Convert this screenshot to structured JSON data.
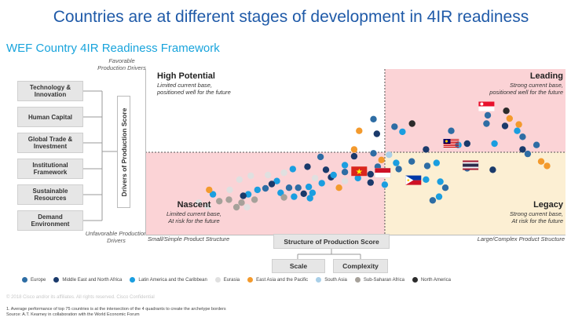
{
  "title": "Countries are at different stages of development in 4IR readiness",
  "subtitle": "WEF Country 4IR Readiness Framework",
  "y_axis": {
    "top_label": "Favorable Production Drivers",
    "bottom_label": "Unfavorable Production Drivers",
    "title": "Drivers of Production Score",
    "drivers": [
      "Technology & Innovation",
      "Human Capital",
      "Global Trade & Investment",
      "Institutional Framework",
      "Sustainable Resources",
      "Demand Environment"
    ]
  },
  "x_axis": {
    "left_label": "Small/Simple Product Structure",
    "right_label": "Large/Complex Product Structure",
    "title": "Structure of Production Score",
    "components": [
      "Scale",
      "Complexity"
    ]
  },
  "quadrants": {
    "high_potential": {
      "title": "High Potential",
      "desc1": "Limited current base,",
      "desc2": "positioned well for the future"
    },
    "leading": {
      "title": "Leading",
      "desc1": "Strong current base,",
      "desc2": "positioned well for the future"
    },
    "nascent": {
      "title": "Nascent",
      "desc1": "Limited current base,",
      "desc2": "At risk for the future"
    },
    "legacy": {
      "title": "Legacy",
      "desc1": "Strong current base,",
      "desc2": "At risk for the future"
    }
  },
  "colors": {
    "title": "#1f5aa8",
    "subtitle": "#19a4dc",
    "quadrant_pink": "#fbd3d6",
    "quadrant_beige": "#fcefd3"
  },
  "copyright": "© 2018  Cisco and/or its affiliates. All rights reserved.   Cisco Confidential",
  "footnote_line1": "1. Average performance of top 75 countries is at the intersection of the 4 quadrants to create the archetype borders",
  "footnote_line2": "Source: A.T. Kearney in collaboration with the World Economic Forum",
  "chart_data": {
    "type": "scatter",
    "title": "WEF Country 4IR Readiness Framework",
    "xlabel": "Structure of Production Score",
    "ylabel": "Drivers of Production Score",
    "xlim": [
      0,
      100
    ],
    "ylim": [
      0,
      100
    ],
    "grid": false,
    "legend_position": "bottom",
    "region_colors": {
      "Europe": "#2e6da4",
      "Middle East and North Africa": "#1a3a6b",
      "Latin America and the Caribbean": "#1a9ee0",
      "Eurasia": "#e0e0e0",
      "East Asia and the Pacific": "#f39a2d",
      "South Asia": "#a9cfe8",
      "Sub-Saharan Africa": "#a6a19a",
      "North America": "#2b2b2b"
    },
    "legend": [
      "Europe",
      "Middle East and North Africa",
      "Latin America and the Caribbean",
      "Eurasia",
      "East Asia and the Pacific",
      "South Asia",
      "Sub-Saharan Africa",
      "North America"
    ],
    "points": [
      {
        "x": 85.9,
        "y": 74.9,
        "r": "North America"
      },
      {
        "x": 81.5,
        "y": 72.2,
        "r": "Europe"
      },
      {
        "x": 81.2,
        "y": 67.2,
        "r": "Europe"
      },
      {
        "x": 86.7,
        "y": 70.3,
        "r": "East Asia and the Pacific"
      },
      {
        "x": 88.9,
        "y": 66.7,
        "r": "East Asia and the Pacific"
      },
      {
        "x": 85.6,
        "y": 65.8,
        "r": "Middle East and North Africa"
      },
      {
        "x": 88.5,
        "y": 62.9,
        "r": "Latin America and the Caribbean"
      },
      {
        "x": 89.8,
        "y": 59.3,
        "r": "Europe"
      },
      {
        "x": 93.1,
        "y": 54.4,
        "r": "Europe"
      },
      {
        "x": 89.8,
        "y": 51.7,
        "r": "Middle East and North Africa"
      },
      {
        "x": 91.0,
        "y": 49.0,
        "r": "Europe"
      },
      {
        "x": 94.2,
        "y": 44.5,
        "r": "East Asia and the Pacific"
      },
      {
        "x": 95.6,
        "y": 41.8,
        "r": "East Asia and the Pacific"
      },
      {
        "x": 82.7,
        "y": 39.5,
        "r": "Middle East and North Africa"
      },
      {
        "x": 83.1,
        "y": 55.2,
        "r": "Latin America and the Caribbean"
      },
      {
        "x": 72.8,
        "y": 62.9,
        "r": "Europe"
      },
      {
        "x": 74.5,
        "y": 54.4,
        "r": "Latin America and the Caribbean"
      },
      {
        "x": 76.6,
        "y": 55.2,
        "r": "Middle East and North Africa"
      },
      {
        "x": 76.6,
        "y": 40.4,
        "r": "Europe"
      },
      {
        "x": 66.8,
        "y": 51.7,
        "r": "Middle East and North Africa"
      },
      {
        "x": 67.1,
        "y": 41.8,
        "r": "Europe"
      },
      {
        "x": 69.3,
        "y": 43.6,
        "r": "Latin America and the Caribbean"
      },
      {
        "x": 66.8,
        "y": 33.6,
        "r": "Latin America and the Caribbean"
      },
      {
        "x": 70.2,
        "y": 32.3,
        "r": "Latin America and the Caribbean"
      },
      {
        "x": 71.4,
        "y": 28.7,
        "r": "Europe"
      },
      {
        "x": 69.9,
        "y": 23.3,
        "r": "Latin America and the Caribbean"
      },
      {
        "x": 68.4,
        "y": 21.1,
        "r": "Europe"
      },
      {
        "x": 63.4,
        "y": 44.5,
        "r": "Europe"
      },
      {
        "x": 56.2,
        "y": 45.4,
        "r": "East Asia and the Pacific"
      },
      {
        "x": 55.3,
        "y": 41.3,
        "r": "Europe"
      },
      {
        "x": 54.3,
        "y": 49.4,
        "r": "Europe"
      },
      {
        "x": 53.6,
        "y": 36.8,
        "r": "Middle East and North Africa"
      },
      {
        "x": 49.7,
        "y": 51.7,
        "r": "East Asia and the Pacific"
      },
      {
        "x": 49.7,
        "y": 47.6,
        "r": "Middle East and North Africa"
      },
      {
        "x": 47.5,
        "y": 38.1,
        "r": "Europe"
      },
      {
        "x": 47.5,
        "y": 32.7,
        "r": "Eurasia"
      },
      {
        "x": 44.2,
        "y": 35.0,
        "r": "Middle East and North Africa"
      },
      {
        "x": 40.4,
        "y": 34.5,
        "r": "Eurasia"
      },
      {
        "x": 42.0,
        "y": 31.4,
        "r": "Latin America and the Caribbean"
      },
      {
        "x": 38.9,
        "y": 29.2,
        "r": "Latin America and the Caribbean"
      },
      {
        "x": 36.4,
        "y": 28.7,
        "r": "Europe"
      },
      {
        "x": 37.7,
        "y": 25.1,
        "r": "Middle East and North Africa"
      },
      {
        "x": 39.2,
        "y": 22.4,
        "r": "Latin America and the Caribbean"
      },
      {
        "x": 39.8,
        "y": 25.6,
        "r": "Latin America and the Caribbean"
      },
      {
        "x": 35.4,
        "y": 23.3,
        "r": "Latin America and the Caribbean"
      },
      {
        "x": 34.2,
        "y": 28.7,
        "r": "Europe"
      },
      {
        "x": 32.2,
        "y": 25.6,
        "r": "Latin America and the Caribbean"
      },
      {
        "x": 33.0,
        "y": 22.9,
        "r": "Sub-Saharan Africa"
      },
      {
        "x": 31.3,
        "y": 32.7,
        "r": "Latin America and the Caribbean"
      },
      {
        "x": 30.1,
        "y": 30.9,
        "r": "Middle East and North Africa"
      },
      {
        "x": 28.6,
        "y": 28.3,
        "r": "Europe"
      },
      {
        "x": 26.7,
        "y": 27.4,
        "r": "Latin America and the Caribbean"
      },
      {
        "x": 24.5,
        "y": 24.7,
        "r": "Latin America and the Caribbean"
      },
      {
        "x": 23.3,
        "y": 23.8,
        "r": "Middle East and North Africa"
      },
      {
        "x": 20.1,
        "y": 27.4,
        "r": "Eurasia"
      },
      {
        "x": 22.4,
        "y": 33.6,
        "r": "Eurasia"
      },
      {
        "x": 25.1,
        "y": 35.9,
        "r": "Eurasia"
      },
      {
        "x": 29.2,
        "y": 36.3,
        "r": "Eurasia"
      },
      {
        "x": 33.0,
        "y": 37.7,
        "r": "Eurasia"
      },
      {
        "x": 16.1,
        "y": 24.7,
        "r": "Latin America and the Caribbean"
      },
      {
        "x": 15.2,
        "y": 27.4,
        "r": "East Asia and the Pacific"
      },
      {
        "x": 17.6,
        "y": 20.6,
        "r": "Sub-Saharan Africa"
      },
      {
        "x": 19.9,
        "y": 21.5,
        "r": "Sub-Saharan Africa"
      },
      {
        "x": 22.9,
        "y": 19.7,
        "r": "Sub-Saharan Africa"
      },
      {
        "x": 26.0,
        "y": 21.5,
        "r": "Sub-Saharan Africa"
      },
      {
        "x": 24.2,
        "y": 17.0,
        "r": "Eurasia"
      },
      {
        "x": 21.7,
        "y": 17.0,
        "r": "Sub-Saharan Africa"
      },
      {
        "x": 14.9,
        "y": 17.5,
        "r": "Eurasia"
      },
      {
        "x": 12.7,
        "y": 19.7,
        "r": "Eurasia"
      },
      {
        "x": 50.9,
        "y": 62.9,
        "r": "East Asia and the Pacific"
      },
      {
        "x": 55.1,
        "y": 61.1,
        "r": "Middle East and North Africa"
      },
      {
        "x": 59.3,
        "y": 65.4,
        "r": "Europe"
      },
      {
        "x": 61.2,
        "y": 62.3,
        "r": "Latin America and the Caribbean"
      },
      {
        "x": 63.5,
        "y": 67.2,
        "r": "North America"
      },
      {
        "x": 54.3,
        "y": 69.9,
        "r": "Europe"
      },
      {
        "x": 59.7,
        "y": 43.6,
        "r": "Latin America and the Caribbean"
      },
      {
        "x": 60.3,
        "y": 39.9,
        "r": "Europe"
      },
      {
        "x": 43.0,
        "y": 39.5,
        "r": "Middle East and North Africa"
      },
      {
        "x": 44.8,
        "y": 36.3,
        "r": "Latin America and the Caribbean"
      },
      {
        "x": 57.0,
        "y": 30.5,
        "r": "Latin America and the Caribbean"
      },
      {
        "x": 50.6,
        "y": 34.5,
        "r": "Latin America and the Caribbean"
      },
      {
        "x": 58.0,
        "y": 48.5,
        "r": "South Asia"
      },
      {
        "x": 41.7,
        "y": 47.2,
        "r": "Europe"
      },
      {
        "x": 38.6,
        "y": 41.3,
        "r": "Middle East and North Africa"
      },
      {
        "x": 35.1,
        "y": 39.9,
        "r": "Latin America and the Caribbean"
      },
      {
        "x": 46.1,
        "y": 28.7,
        "r": "East Asia and the Pacific"
      },
      {
        "x": 53.6,
        "y": 31.8,
        "r": "Middle East and North Africa"
      },
      {
        "x": 47.5,
        "y": 42.2,
        "r": "Latin America and the Caribbean"
      }
    ],
    "flags": [
      {
        "x": 81.2,
        "y": 77.6,
        "country": "SG"
      },
      {
        "x": 72.8,
        "y": 55.2,
        "country": "MY"
      },
      {
        "x": 77.4,
        "y": 42.2,
        "country": "TH"
      },
      {
        "x": 50.9,
        "y": 38.6,
        "country": "VN"
      },
      {
        "x": 56.5,
        "y": 37.7,
        "country": "ID"
      },
      {
        "x": 63.8,
        "y": 33.2,
        "country": "PH"
      }
    ]
  }
}
